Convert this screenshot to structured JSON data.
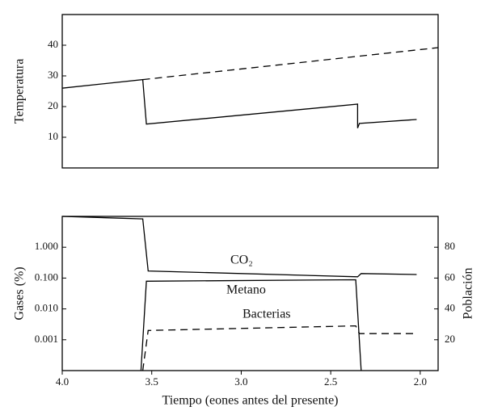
{
  "chart_data": [
    {
      "type": "line",
      "ylabel": "Temperatura",
      "xlim": [
        4.0,
        1.9
      ],
      "ylim": [
        0,
        50
      ],
      "yticks": [
        10,
        20,
        30,
        40
      ],
      "series": [
        {
          "color": "#000000",
          "linestyle": "solid",
          "x": [
            4.0,
            3.55,
            3.53,
            2.35,
            2.35,
            2.34,
            2.02
          ],
          "values": [
            26,
            28.8,
            14.3,
            20.8,
            13,
            14.5,
            15.8
          ]
        },
        {
          "color": "#000000",
          "linestyle": "dashed",
          "x": [
            3.55,
            1.9
          ],
          "values": [
            28.8,
            39.2
          ]
        }
      ]
    },
    {
      "type": "line",
      "xlabel": "Tiempo (eones antes del presente)",
      "ylabel": "Gases (%)",
      "y2label": "Población",
      "xlim": [
        4.0,
        1.9
      ],
      "xticks": [
        {
          "value": 4.0,
          "label": "4.0"
        },
        {
          "value": 3.5,
          "label": "3.5"
        },
        {
          "value": 3.0,
          "label": "3.0"
        },
        {
          "value": 2.5,
          "label": "2.5"
        },
        {
          "value": 2.0,
          "label": "2.0"
        }
      ],
      "ylim": [
        0.0001,
        10
      ],
      "yscale": "log",
      "yticks": [
        {
          "value": 0.001,
          "label": "0.001"
        },
        {
          "value": 0.01,
          "label": "0.010"
        },
        {
          "value": 0.1,
          "label": "0.100"
        },
        {
          "value": 1,
          "label": "1.000"
        }
      ],
      "y2lim": [
        0,
        100
      ],
      "y2ticks": [
        20,
        40,
        60,
        80
      ],
      "series": [
        {
          "name": "CO₂",
          "color": "#000000",
          "linestyle": "solid",
          "x": [
            4.0,
            3.55,
            3.52,
            2.35,
            2.33,
            2.02
          ],
          "values": [
            10,
            8.3,
            0.17,
            0.11,
            0.14,
            0.13
          ]
        },
        {
          "name": "Metano",
          "color": "#000000",
          "linestyle": "solid",
          "x": [
            3.56,
            3.53,
            2.36,
            2.33
          ],
          "values": [
            0.0001,
            0.079,
            0.088,
            0.0001
          ]
        },
        {
          "name": "Bacterias",
          "color": "#000000",
          "linestyle": "dashed",
          "axis": "y2",
          "x": [
            3.55,
            3.52,
            2.36,
            2.34,
            2.02
          ],
          "values": [
            0,
            26,
            29,
            24,
            24
          ]
        }
      ]
    }
  ]
}
